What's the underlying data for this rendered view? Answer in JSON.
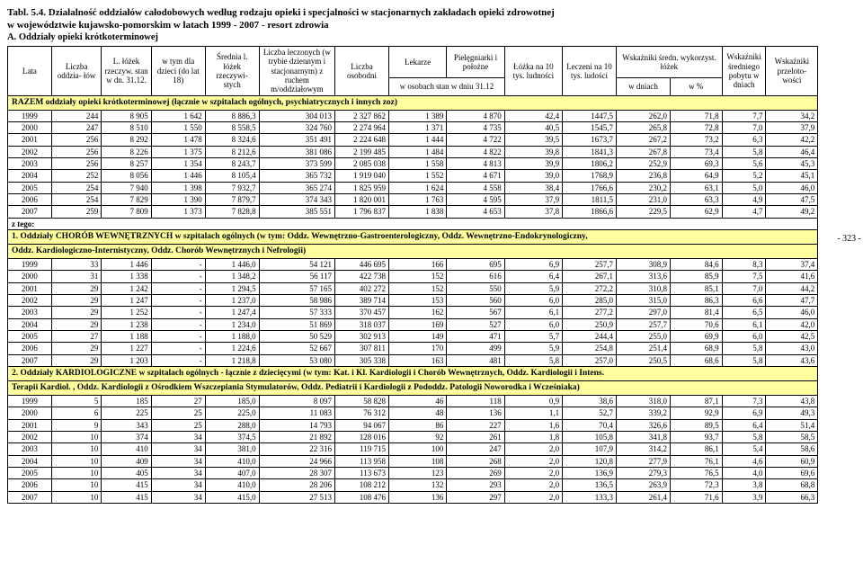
{
  "title": "Tabl. 5.4.  Działalność oddziałów całodobowych według  rodzaju opieki  i  specjalności w stacjonarnych zakładach opieki zdrowotnej",
  "title2": "                  w województwie kujawsko-pomorskim w latach 1999 - 2007  - resort zdrowia",
  "subtitle_a": "A.  Oddziały opieki krótkoterminowej",
  "page_side": "- 323 -",
  "headers": {
    "lata": "Lata",
    "liczba_oddzialow": "Liczba\noddzia-\nłów",
    "lozek_rzecz": "L. łóżek\nrzeczyw.\nstan w dn.\n31.12.",
    "dzieci": "w tym dla\ndzieci\n(do lat 18)",
    "srednia": "Średnia\nl. łóżek\nrzeczywi-\nstych",
    "leczonych": "Liczba\nleczonych (w\ntrybie dziennym\ni stacjonarnym)\nz ruchem\nm/oddziałowym",
    "osobodni": "Liczba\nosobodni",
    "lekarze": "Lekarze",
    "pielegniarki": "Pielęgniarki\ni położne",
    "wosobach": "w osobach\nstan w dniu 31.12",
    "lozka10": "Łóżka\nna 10 tys.\nludności",
    "leczeni10": "Leczeni\nna 10 tys.\nludości",
    "wskazniki_sredn": "Wskaźniki średn.\nwykorzyst. łóżek",
    "wdniach": "w dniach",
    "wpct": "w %",
    "sredni_pobyt": "Wskaźniki\nśredniego\npobytu\nw dniach",
    "przeloto": "Wskaźniki\nprzeloto-\nwości"
  },
  "sections": {
    "razem": "RAZEM oddziały opieki krótkoterminowej  (łącznie w szpitalach ogólnych, psychiatrycznych i innych zoz)",
    "ztego": "z tego:",
    "s1a": "1.  Oddziały CHORÓB  WEWNĘTRZNYCH w szpitalach ogólnych  (w tym: Oddz. Wewnętrzno-Gastroenterologiczny, Oddz. Wewnętrzno-Endokrynologiczny,",
    "s1b": "Oddz. Kardiologiczno-Internistyczny, Oddz. Chorób Wewnętrznych i Nefrologii)",
    "s2a": "2.  Oddziały KARDIOLOGICZNE  w szpitalach ogólnych - łącznie z dziecięcymi (w tym: Kat. i Kl. Kardiologii i Chorób Wewnętrznych, Oddz. Kardiologii i Intens.",
    "s2b": "Terapii Kardiol. , Oddz. Kardiologii z Ośrodkiem Wszczepiania Stymulatorów, Oddz. Pediatrii i Kardiologii z Pododdz. Patologii Noworodka i Wcześniaka)"
  },
  "rows_razem": [
    [
      "1999",
      "244",
      "8 905",
      "1 642",
      "8 886,3",
      "304 013",
      "2 327 862",
      "1 389",
      "4 870",
      "42,4",
      "1447,5",
      "262,0",
      "71,8",
      "7,7",
      "34,2"
    ],
    [
      "2000",
      "247",
      "8 510",
      "1 550",
      "8 558,5",
      "324 760",
      "2 274 964",
      "1 371",
      "4 735",
      "40,5",
      "1545,7",
      "265,8",
      "72,8",
      "7,0",
      "37,9"
    ],
    [
      "2001",
      "256",
      "8 292",
      "1 478",
      "8 324,6",
      "351 491",
      "2 224 648",
      "1 444",
      "4 722",
      "39,5",
      "1673,7",
      "267,2",
      "73,2",
      "6,3",
      "42,2"
    ],
    [
      "2002",
      "256",
      "8 226",
      "1 375",
      "8 212,6",
      "381 086",
      "2 199 485",
      "1 484",
      "4 822",
      "39,8",
      "1841,3",
      "267,8",
      "73,4",
      "5,8",
      "46,4"
    ],
    [
      "2003",
      "256",
      "8 257",
      "1 354",
      "8 243,7",
      "373 599",
      "2 085 038",
      "1 558",
      "4 813",
      "39,9",
      "1806,2",
      "252,9",
      "69,3",
      "5,6",
      "45,3"
    ],
    [
      "2004",
      "252",
      "8 056",
      "1 446",
      "8 105,4",
      "365 732",
      "1 919 040",
      "1 552",
      "4 671",
      "39,0",
      "1768,9",
      "236,8",
      "64,9",
      "5,2",
      "45,1"
    ],
    [
      "2005",
      "254",
      "7 940",
      "1 398",
      "7 932,7",
      "365 274",
      "1 825 959",
      "1 624",
      "4 558",
      "38,4",
      "1766,6",
      "230,2",
      "63,1",
      "5,0",
      "46,0"
    ],
    [
      "2006",
      "254",
      "7 829",
      "1 390",
      "7 879,7",
      "374 343",
      "1 820 001",
      "1 763",
      "4 595",
      "37,9",
      "1811,5",
      "231,0",
      "63,3",
      "4,9",
      "47,5"
    ],
    [
      "2007",
      "259",
      "7 809",
      "1 373",
      "7 828,8",
      "385 551",
      "1 796 837",
      "1 838",
      "4 653",
      "37,8",
      "1866,6",
      "229,5",
      "62,9",
      "4,7",
      "49,2"
    ]
  ],
  "rows_s1": [
    [
      "1999",
      "33",
      "1 446",
      "-",
      "1 446,0",
      "54 121",
      "446 695",
      "166",
      "695",
      "6,9",
      "257,7",
      "308,9",
      "84,6",
      "8,3",
      "37,4"
    ],
    [
      "2000",
      "31",
      "1 338",
      "-",
      "1 348,2",
      "56 117",
      "422 738",
      "152",
      "616",
      "6,4",
      "267,1",
      "313,6",
      "85,9",
      "7,5",
      "41,6"
    ],
    [
      "2001",
      "29",
      "1 242",
      "-",
      "1 294,5",
      "57 165",
      "402 272",
      "152",
      "550",
      "5,9",
      "272,2",
      "310,8",
      "85,1",
      "7,0",
      "44,2"
    ],
    [
      "2002",
      "29",
      "1 247",
      "-",
      "1 237,0",
      "58 986",
      "389 714",
      "153",
      "560",
      "6,0",
      "285,0",
      "315,0",
      "86,3",
      "6,6",
      "47,7"
    ],
    [
      "2003",
      "29",
      "1 252",
      "-",
      "1 247,4",
      "57 333",
      "370 457",
      "162",
      "567",
      "6,1",
      "277,2",
      "297,0",
      "81,4",
      "6,5",
      "46,0"
    ],
    [
      "2004",
      "29",
      "1 238",
      "-",
      "1 234,0",
      "51 869",
      "318 037",
      "169",
      "527",
      "6,0",
      "250,9",
      "257,7",
      "70,6",
      "6,1",
      "42,0"
    ],
    [
      "2005",
      "27",
      "1 188",
      "-",
      "1 188,0",
      "50 529",
      "302 913",
      "149",
      "471",
      "5,7",
      "244,4",
      "255,0",
      "69,9",
      "6,0",
      "42,5"
    ],
    [
      "2006",
      "29",
      "1 227",
      "-",
      "1 224,6",
      "52 667",
      "307 811",
      "170",
      "499",
      "5,9",
      "254,8",
      "251,4",
      "68,9",
      "5,8",
      "43,0"
    ],
    [
      "2007",
      "29",
      "1 203",
      "-",
      "1 218,8",
      "53 080",
      "305 338",
      "163",
      "481",
      "5,8",
      "257,0",
      "250,5",
      "68,6",
      "5,8",
      "43,6"
    ]
  ],
  "rows_s2": [
    [
      "1999",
      "5",
      "185",
      "27",
      "185,0",
      "8 097",
      "58 828",
      "46",
      "118",
      "0,9",
      "38,6",
      "318,0",
      "87,1",
      "7,3",
      "43,8"
    ],
    [
      "2000",
      "6",
      "225",
      "25",
      "225,0",
      "11 083",
      "76 312",
      "48",
      "136",
      "1,1",
      "52,7",
      "339,2",
      "92,9",
      "6,9",
      "49,3"
    ],
    [
      "2001",
      "9",
      "343",
      "25",
      "288,0",
      "14 793",
      "94 067",
      "86",
      "227",
      "1,6",
      "70,4",
      "326,6",
      "89,5",
      "6,4",
      "51,4"
    ],
    [
      "2002",
      "10",
      "374",
      "34",
      "374,5",
      "21 892",
      "128 016",
      "92",
      "261",
      "1,8",
      "105,8",
      "341,8",
      "93,7",
      "5,8",
      "58,5"
    ],
    [
      "2003",
      "10",
      "410",
      "34",
      "381,0",
      "22 316",
      "119 715",
      "100",
      "247",
      "2,0",
      "107,9",
      "314,2",
      "86,1",
      "5,4",
      "58,6"
    ],
    [
      "2004",
      "10",
      "409",
      "34",
      "410,0",
      "24 966",
      "113 958",
      "108",
      "268",
      "2,0",
      "120,8",
      "277,9",
      "76,1",
      "4,6",
      "60,9"
    ],
    [
      "2005",
      "10",
      "405",
      "34",
      "407,0",
      "28 307",
      "113 673",
      "123",
      "269",
      "2,0",
      "136,9",
      "279,3",
      "76,5",
      "4,0",
      "69,6"
    ],
    [
      "2006",
      "10",
      "415",
      "34",
      "410,0",
      "28 206",
      "108 212",
      "132",
      "293",
      "2,0",
      "136,5",
      "263,9",
      "72,3",
      "3,8",
      "68,8"
    ],
    [
      "2007",
      "10",
      "415",
      "34",
      "415,0",
      "27 513",
      "108 476",
      "136",
      "297",
      "2,0",
      "133,3",
      "261,4",
      "71,6",
      "3,9",
      "66,3"
    ]
  ],
  "style": {
    "highlight_bg": "#ffffa0",
    "border_color": "#000000"
  }
}
